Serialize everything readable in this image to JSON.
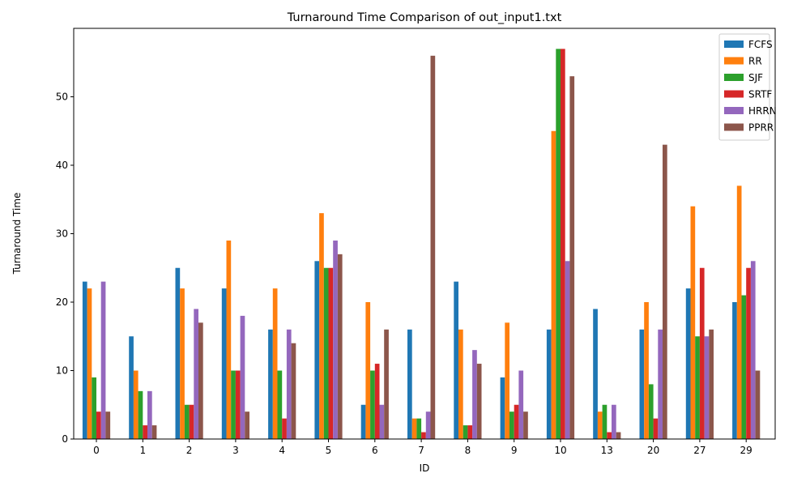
{
  "chart_data": {
    "type": "bar",
    "title": "Turnaround Time Comparison of out_input1.txt",
    "xlabel": "ID",
    "ylabel": "Turnaround Time",
    "ylim": [
      0,
      60
    ],
    "yticks": [
      0,
      10,
      20,
      30,
      40,
      50
    ],
    "grid": false,
    "legend_position": "top-right",
    "categories": [
      "0",
      "1",
      "2",
      "3",
      "4",
      "5",
      "6",
      "7",
      "8",
      "9",
      "10",
      "13",
      "20",
      "27",
      "29"
    ],
    "series": [
      {
        "name": "FCFS",
        "color": "#1f77b4",
        "values": [
          23,
          15,
          25,
          22,
          16,
          26,
          5,
          16,
          23,
          9,
          16,
          19,
          16,
          22,
          20
        ]
      },
      {
        "name": "RR",
        "color": "#ff7f0e",
        "values": [
          22,
          10,
          22,
          29,
          22,
          33,
          20,
          3,
          16,
          17,
          45,
          4,
          20,
          34,
          37
        ]
      },
      {
        "name": "SJF",
        "color": "#2ca02c",
        "values": [
          9,
          7,
          5,
          10,
          10,
          25,
          10,
          3,
          2,
          4,
          57,
          5,
          8,
          15,
          21
        ]
      },
      {
        "name": "SRTF",
        "color": "#d62728",
        "values": [
          4,
          2,
          5,
          10,
          3,
          25,
          11,
          1,
          2,
          5,
          57,
          1,
          3,
          25,
          25
        ]
      },
      {
        "name": "HRRN",
        "color": "#9467bd",
        "values": [
          23,
          7,
          19,
          18,
          16,
          29,
          5,
          4,
          13,
          10,
          26,
          5,
          16,
          15,
          26
        ]
      },
      {
        "name": "PPRR",
        "color": "#8c564b",
        "values": [
          4,
          2,
          17,
          4,
          14,
          27,
          16,
          56,
          11,
          4,
          53,
          1,
          43,
          16,
          10
        ]
      }
    ]
  }
}
